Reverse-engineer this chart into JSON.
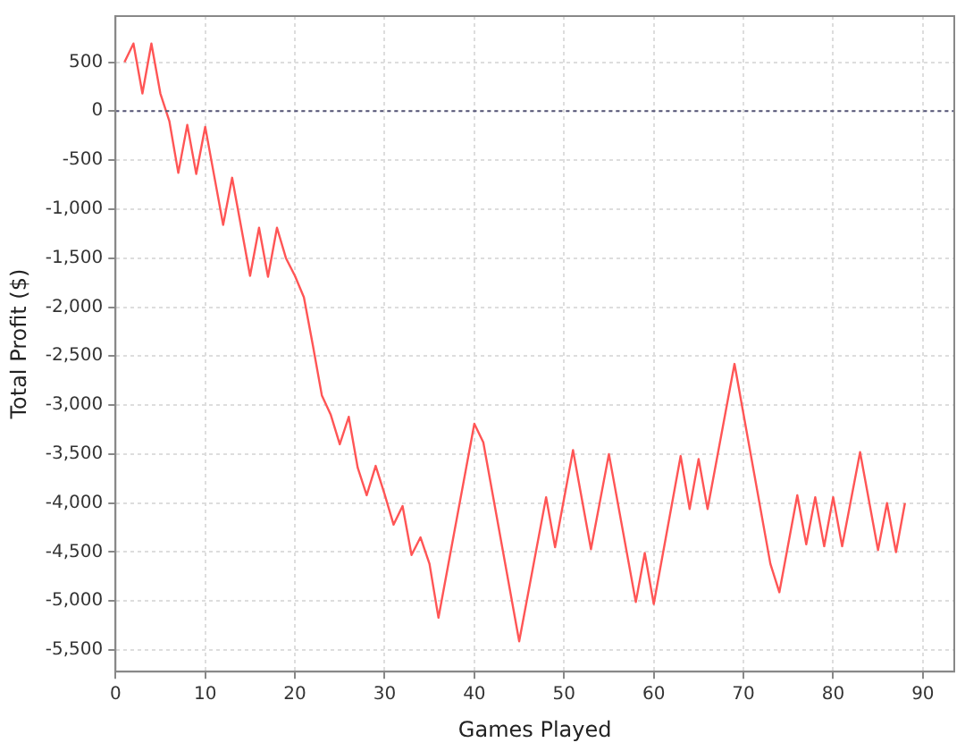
{
  "chart_data": {
    "type": "line",
    "xlabel": "Games Played",
    "ylabel": "Total Profit ($)",
    "x": [
      1,
      2,
      3,
      4,
      5,
      6,
      7,
      8,
      9,
      10,
      11,
      12,
      13,
      15,
      16,
      17,
      18,
      19,
      20,
      21,
      22,
      23,
      24,
      25,
      26,
      27,
      28,
      29,
      30,
      31,
      32,
      33,
      34,
      35,
      36,
      40,
      41,
      45,
      48,
      49,
      51,
      53,
      55,
      58,
      59,
      60,
      63,
      64,
      65,
      66,
      69,
      73,
      74,
      76,
      77,
      78,
      79,
      80,
      81,
      83,
      85,
      86,
      87,
      88
    ],
    "series": [
      {
        "color": "#ff5555",
        "values": [
          500,
          690,
          180,
          690,
          180,
          -100,
          -630,
          -140,
          -640,
          -160,
          -660,
          -1160,
          -680,
          -1680,
          -1190,
          -1690,
          -1190,
          -1500,
          -1680,
          -1900,
          -2390,
          -2900,
          -3100,
          -3400,
          -3120,
          -3640,
          -3920,
          -3620,
          -3910,
          -4220,
          -4030,
          -4530,
          -4350,
          -4620,
          -5170,
          -3190,
          -3380,
          -5410,
          -3940,
          -4450,
          -3460,
          -4470,
          -3500,
          -5010,
          -4510,
          -5030,
          -3520,
          -4060,
          -3550,
          -4060,
          -2580,
          -4620,
          -4910,
          -3920,
          -4420,
          -3940,
          -4440,
          -3940,
          -4440,
          -3480,
          -4480,
          -4000,
          -4500,
          -4000
        ]
      }
    ],
    "xlim": [
      0,
      93.5
    ],
    "ylim": [
      -5720,
      970
    ],
    "xticks": [
      0,
      10,
      20,
      30,
      40,
      50,
      60,
      70,
      80,
      90
    ],
    "yticks": [
      {
        "value": -5500,
        "label": "-5,500"
      },
      {
        "value": -5000,
        "label": "-5,000"
      },
      {
        "value": -4500,
        "label": "-4,500"
      },
      {
        "value": -4000,
        "label": "-4,000"
      },
      {
        "value": -3500,
        "label": "-3,500"
      },
      {
        "value": -3000,
        "label": "-3,000"
      },
      {
        "value": -2500,
        "label": "-2,500"
      },
      {
        "value": -2000,
        "label": "-2,000"
      },
      {
        "value": -1500,
        "label": "-1,500"
      },
      {
        "value": -1000,
        "label": "-1,000"
      },
      {
        "value": -500,
        "label": "-500"
      },
      0,
      500
    ],
    "ref_lines": [
      {
        "axis": "y",
        "value": 0,
        "color": "#555577",
        "line_style": "dotted"
      }
    ],
    "grid": true,
    "legend": false,
    "marker": "none",
    "line_style": "solid"
  }
}
